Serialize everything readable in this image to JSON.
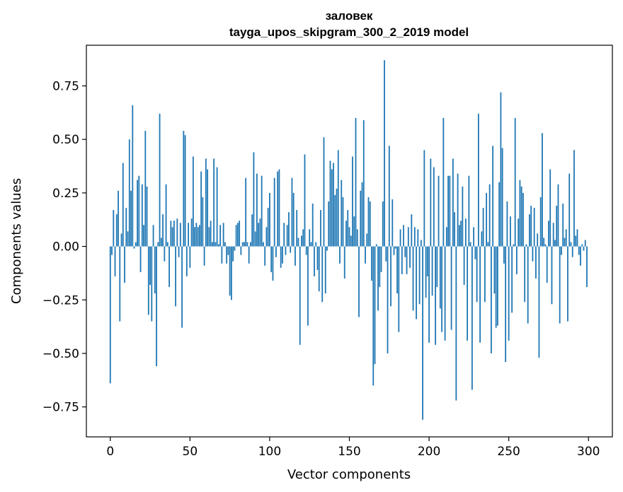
{
  "chart_data": {
    "type": "bar",
    "title": "заловек",
    "subtitle": "tayga_upos_skipgram_300_2_2019 model",
    "xlabel": "Vector components",
    "ylabel": "Components values",
    "xlim": [
      -15,
      315
    ],
    "ylim": [
      -0.89,
      0.94
    ],
    "xticks": [
      0,
      50,
      100,
      150,
      200,
      250,
      300
    ],
    "xtick_labels": [
      "0",
      "50",
      "100",
      "150",
      "200",
      "250",
      "300"
    ],
    "yticks": [
      -0.75,
      -0.5,
      -0.25,
      0.0,
      0.25,
      0.5,
      0.75
    ],
    "ytick_labels": [
      "−0.75",
      "−0.50",
      "−0.25",
      "0.00",
      "0.25",
      "0.50",
      "0.75"
    ],
    "grid": false,
    "bar_color": "#1f77b4",
    "values": [
      -0.64,
      -0.04,
      0.17,
      -0.14,
      0.15,
      0.26,
      -0.35,
      0.06,
      0.39,
      -0.17,
      0.18,
      0.07,
      0.5,
      0.26,
      0.66,
      -0.01,
      0.02,
      0.31,
      0.33,
      -0.12,
      0.29,
      0.1,
      0.54,
      0.28,
      -0.32,
      -0.18,
      -0.35,
      0.1,
      -0.22,
      -0.56,
      0.02,
      0.62,
      0.04,
      0.15,
      -0.07,
      0.29,
      0.02,
      -0.19,
      0.12,
      0.09,
      0.12,
      -0.28,
      0.13,
      -0.05,
      0.11,
      -0.38,
      0.54,
      0.52,
      -0.14,
      0.11,
      -0.1,
      0.13,
      0.42,
      0.09,
      0.11,
      0.09,
      0.1,
      0.35,
      0.23,
      -0.09,
      0.41,
      0.36,
      0.09,
      0.12,
      0.02,
      0.41,
      0.02,
      0.37,
      0.01,
      0.1,
      -0.08,
      0.11,
      0.02,
      -0.08,
      -0.04,
      -0.23,
      -0.25,
      -0.07,
      -0.02,
      0.1,
      0.11,
      0.12,
      -0.04,
      0.02,
      0.02,
      0.32,
      0.02,
      -0.08,
      0.02,
      0.15,
      0.44,
      0.07,
      0.34,
      0.11,
      0.13,
      0.33,
      0.02,
      -0.09,
      0.09,
      0.18,
      0.25,
      -0.12,
      -0.16,
      0.32,
      -0.05,
      0.35,
      0.36,
      -0.1,
      -0.08,
      0.11,
      -0.04,
      0.1,
      0.16,
      -0.03,
      0.32,
      0.25,
      -0.09,
      0.17,
      0.04,
      -0.46,
      0.05,
      0.08,
      0.43,
      -0.04,
      -0.37,
      0.08,
      0.02,
      0.2,
      -0.14,
      0.02,
      -0.11,
      -0.21,
      0.17,
      -0.26,
      0.51,
      -0.22,
      -0.02,
      0.21,
      0.4,
      0.36,
      0.39,
      0.24,
      0.27,
      0.45,
      -0.08,
      0.31,
      0.23,
      -0.15,
      0.12,
      0.17,
      0.09,
      0.05,
      0.42,
      0.14,
      0.6,
      0.08,
      -0.33,
      0.26,
      0.3,
      0.59,
      -0.08,
      0.06,
      0.23,
      0.21,
      -0.16,
      -0.65,
      -0.55,
      0.01,
      -0.3,
      -0.19,
      -0.12,
      0.21,
      0.87,
      -0.07,
      -0.5,
      0.47,
      -0.28,
      0.22,
      -0.04,
      -0.01,
      -0.22,
      -0.4,
      0.08,
      -0.13,
      0.1,
      -0.05,
      -0.13,
      0.09,
      -0.1,
      0.15,
      -0.3,
      0.09,
      -0.34,
      0.08,
      -0.27,
      0.03,
      -0.81,
      0.45,
      -0.24,
      -0.14,
      -0.45,
      0.41,
      -0.23,
      0.37,
      -0.46,
      -0.19,
      0.33,
      -0.29,
      -0.4,
      0.6,
      -0.44,
      0.09,
      0.33,
      0.33,
      -0.39,
      0.41,
      0.16,
      -0.72,
      0.34,
      0.1,
      0.12,
      0.28,
      -0.18,
      0.13,
      -0.44,
      0.33,
      0.02,
      -0.67,
      0.09,
      -0.06,
      -0.26,
      0.62,
      -0.45,
      0.07,
      0.18,
      -0.26,
      0.25,
      0.02,
      0.29,
      -0.5,
      0.47,
      -0.22,
      -0.38,
      -0.37,
      0.3,
      0.72,
      0.46,
      -0.08,
      -0.54,
      0.21,
      -0.44,
      0.14,
      -0.31,
      0.01,
      0.6,
      -0.13,
      0.13,
      0.31,
      0.28,
      0.25,
      -0.26,
      0.01,
      -0.36,
      0.15,
      0.19,
      -0.07,
      0.18,
      -0.15,
      0.06,
      -0.52,
      0.23,
      0.53,
      0.04,
      0.01,
      -0.17,
      0.12,
      0.36,
      -0.27,
      0.11,
      0.03,
      0.19,
      0.29,
      -0.36,
      -0.04,
      0.2,
      0.04,
      0.08,
      -0.35,
      0.34,
      0.02,
      -0.05,
      0.45,
      0.05,
      0.08,
      -0.04,
      -0.09,
      0.01,
      -0.02,
      0.03,
      -0.19
    ]
  }
}
